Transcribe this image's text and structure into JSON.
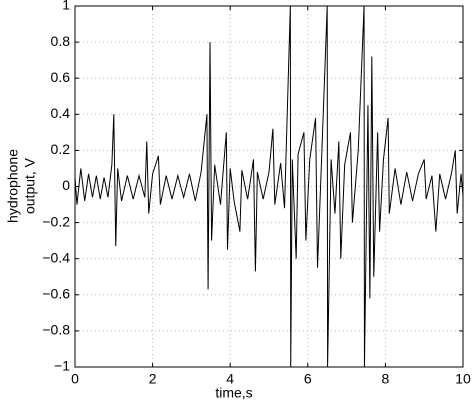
{
  "chart_data": {
    "type": "line",
    "xlabel": "time,s",
    "ylabel": [
      "hydrophone",
      "output, V"
    ],
    "xlim": [
      0,
      10
    ],
    "xticks": [
      0,
      2,
      4,
      6,
      8,
      10
    ],
    "ylim": [
      -1,
      1
    ],
    "yticks": [
      {
        "value": -1,
        "label": "−1"
      },
      {
        "value": -0.8,
        "label": "−0.8"
      },
      {
        "value": -0.6,
        "label": "−0.6"
      },
      {
        "value": -0.4,
        "label": "−0.4"
      },
      {
        "value": -0.2,
        "label": "−0.2"
      },
      0,
      0.2,
      0.4,
      0.6,
      0.8,
      1
    ],
    "grid": true,
    "series": [
      {
        "color": "#000000",
        "x": [
          0,
          0.05,
          0.15,
          0.25,
          0.35,
          0.45,
          0.55,
          0.65,
          0.75,
          0.85,
          0.95,
          1.0,
          1.05,
          1.1,
          1.2,
          1.35,
          1.5,
          1.65,
          1.8,
          1.85,
          1.9,
          2.0,
          2.15,
          2.2,
          2.35,
          2.5,
          2.65,
          2.8,
          2.95,
          3.1,
          3.25,
          3.4,
          3.43,
          3.48,
          3.52,
          3.6,
          3.75,
          3.9,
          3.93,
          4.0,
          4.1,
          4.25,
          4.3,
          4.45,
          4.6,
          4.65,
          4.7,
          4.85,
          5.0,
          5.1,
          5.15,
          5.3,
          5.4,
          5.55,
          5.56,
          5.6,
          5.7,
          5.75,
          5.9,
          5.95,
          6.05,
          6.2,
          6.25,
          6.35,
          6.5,
          6.51,
          6.6,
          6.7,
          6.8,
          6.85,
          6.95,
          7.1,
          7.15,
          7.3,
          7.45,
          7.46,
          7.55,
          7.6,
          7.65,
          7.7,
          7.8,
          7.85,
          7.95,
          8.07,
          8.1,
          8.25,
          8.4,
          8.55,
          8.7,
          8.85,
          9.0,
          9.05,
          9.2,
          9.3,
          9.4,
          9.55,
          9.7,
          9.8,
          9.85,
          9.95,
          10
        ],
        "values": [
          0.05,
          -0.1,
          0.1,
          -0.08,
          0.07,
          -0.06,
          0.06,
          -0.07,
          0.05,
          -0.06,
          0.12,
          0.4,
          -0.33,
          0.1,
          -0.08,
          0.06,
          -0.07,
          0.06,
          -0.06,
          0.25,
          -0.15,
          0.07,
          0.17,
          -0.1,
          0.06,
          -0.07,
          0.06,
          -0.06,
          0.07,
          -0.08,
          0.08,
          0.4,
          -0.57,
          0.8,
          -0.3,
          0.12,
          -0.1,
          0.3,
          -0.35,
          0.1,
          -0.08,
          -0.25,
          0.09,
          -0.07,
          0.15,
          -0.47,
          0.08,
          -0.07,
          0.08,
          0.32,
          -0.1,
          0.13,
          -0.12,
          1,
          -1,
          0.15,
          -0.4,
          0.18,
          0.3,
          -0.3,
          0.15,
          0.38,
          -0.45,
          0.12,
          1,
          -1,
          0.15,
          -0.15,
          0.25,
          -0.4,
          0.12,
          0.3,
          -0.2,
          0.2,
          1,
          -1,
          0.45,
          -0.62,
          0.72,
          -0.5,
          0.3,
          -0.25,
          0.15,
          0.38,
          -0.15,
          0.1,
          -0.1,
          0.08,
          -0.08,
          0.07,
          0.15,
          -0.07,
          0.06,
          -0.25,
          0.07,
          -0.07,
          0.07,
          0.2,
          -0.15,
          0.07,
          -0.05
        ]
      }
    ]
  }
}
